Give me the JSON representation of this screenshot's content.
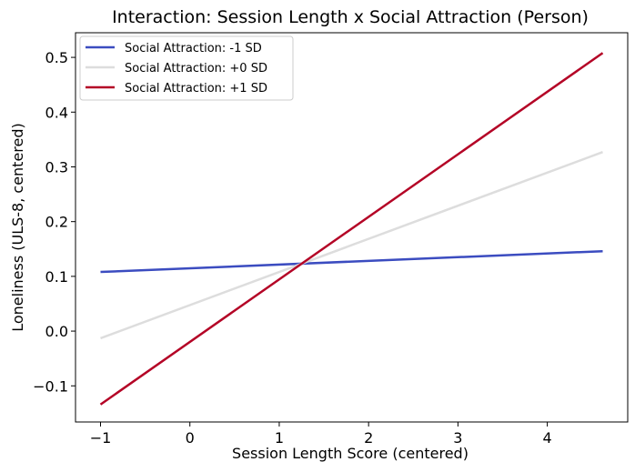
{
  "chart_data": {
    "type": "line",
    "title": "Interaction: Session Length x Social Attraction (Person)",
    "xlabel": "Session Length Score (centered)",
    "ylabel": "Loneliness (ULS-8, centered)",
    "xlim": [
      -1.28,
      4.9
    ],
    "ylim": [
      -0.166,
      0.545
    ],
    "xticks": [
      -1,
      0,
      1,
      2,
      3,
      4
    ],
    "xtick_labels": [
      "−1",
      "0",
      "1",
      "2",
      "3",
      "4"
    ],
    "yticks": [
      -0.1,
      0.0,
      0.1,
      0.2,
      0.3,
      0.4,
      0.5
    ],
    "ytick_labels": [
      "−0.1",
      "0.0",
      "0.1",
      "0.2",
      "0.3",
      "0.4",
      "0.5"
    ],
    "legend_position": "top-left",
    "grid": false,
    "series": [
      {
        "name": "Social Attraction: -1 SD",
        "color": "#3b4cc0",
        "x": [
          -1,
          4.62
        ],
        "y": [
          0.108,
          0.146
        ]
      },
      {
        "name": "Social Attraction: +0 SD",
        "color": "#dddddd",
        "x": [
          -1,
          4.62
        ],
        "y": [
          -0.013,
          0.327
        ]
      },
      {
        "name": "Social Attraction: +1 SD",
        "color": "#b40426",
        "x": [
          -1,
          4.62
        ],
        "y": [
          -0.134,
          0.508
        ]
      }
    ]
  }
}
